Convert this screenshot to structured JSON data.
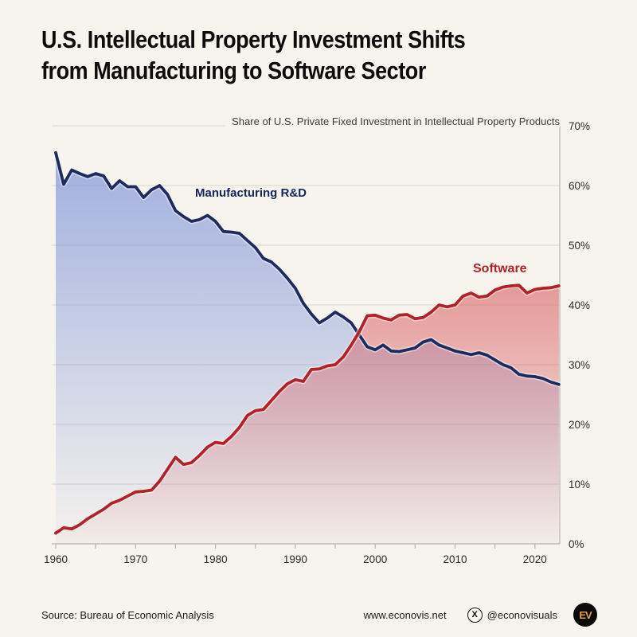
{
  "header": {
    "title_line1": "U.S. Intellectual Property Investment Shifts",
    "title_line2": "from Manufacturing to Software Sector"
  },
  "chart": {
    "subtitle": "Share of U.S. Private Fixed Investment in Intellectual Property Products",
    "manufacturing_label": "Manufacturing R&D",
    "software_label": "Software"
  },
  "chart_data": {
    "type": "area",
    "title": "U.S. Intellectual Property Investment Shifts from Manufacturing to Software Sector",
    "subtitle": "Share of U.S. Private Fixed Investment in Intellectual Property Products",
    "xlabel": "",
    "ylabel": "",
    "ylim": [
      0,
      70
    ],
    "grid": true,
    "legend": "inline-labels",
    "ytick_values": [
      0,
      10,
      20,
      30,
      40,
      50,
      60,
      70
    ],
    "ytick_labels": [
      "0%",
      "10%",
      "20%",
      "30%",
      "40%",
      "50%",
      "60%",
      "70%"
    ],
    "xtick_labels": [
      1960,
      1970,
      1980,
      1990,
      2000,
      2010,
      2020
    ],
    "minor_xtick_step_years": 5,
    "x": [
      1960,
      1961,
      1962,
      1963,
      1964,
      1965,
      1966,
      1967,
      1968,
      1969,
      1970,
      1971,
      1972,
      1973,
      1974,
      1975,
      1976,
      1977,
      1978,
      1979,
      1980,
      1981,
      1982,
      1983,
      1984,
      1985,
      1986,
      1987,
      1988,
      1989,
      1990,
      1991,
      1992,
      1993,
      1994,
      1995,
      1996,
      1997,
      1998,
      1999,
      2000,
      2001,
      2002,
      2003,
      2004,
      2005,
      2006,
      2007,
      2008,
      2009,
      2010,
      2011,
      2012,
      2013,
      2014,
      2015,
      2016,
      2017,
      2018,
      2019,
      2020,
      2021,
      2022,
      2023
    ],
    "series": [
      {
        "name": "Manufacturing R&D",
        "line_color": "#1d2b61",
        "fill_color": "#6c85d6",
        "values": [
          65.5,
          60.2,
          62.6,
          62.0,
          61.5,
          62.0,
          61.6,
          59.5,
          60.8,
          59.8,
          59.8,
          58.0,
          59.3,
          60.0,
          58.5,
          55.8,
          54.8,
          54.0,
          54.3,
          55.0,
          54.0,
          52.3,
          52.2,
          52.0,
          50.8,
          49.6,
          47.8,
          47.2,
          46.0,
          44.5,
          42.8,
          40.3,
          38.5,
          37.0,
          37.8,
          38.8,
          38.0,
          37.0,
          35.0,
          33.0,
          32.5,
          33.3,
          32.3,
          32.2,
          32.5,
          32.8,
          33.8,
          34.2,
          33.3,
          32.8,
          32.3,
          32.0,
          31.7,
          32.0,
          31.6,
          30.8,
          30.0,
          29.5,
          28.4,
          28.1,
          28.0,
          27.7,
          27.1,
          26.7
        ]
      },
      {
        "name": "Software",
        "line_color": "#b1222a",
        "fill_color": "#d65055",
        "values": [
          1.8,
          2.7,
          2.5,
          3.2,
          4.2,
          5.0,
          5.8,
          6.8,
          7.3,
          8.0,
          8.7,
          8.8,
          9.0,
          10.5,
          12.5,
          14.5,
          13.3,
          13.6,
          14.8,
          16.2,
          17.0,
          16.8,
          18.0,
          19.5,
          21.5,
          22.3,
          22.5,
          24.0,
          25.5,
          26.8,
          27.5,
          27.2,
          29.2,
          29.3,
          29.8,
          30.0,
          31.3,
          33.3,
          35.5,
          38.2,
          38.3,
          37.8,
          37.5,
          38.3,
          38.4,
          37.7,
          37.9,
          38.8,
          40.0,
          39.7,
          40.0,
          41.5,
          42.0,
          41.3,
          41.5,
          42.5,
          43.0,
          43.2,
          43.3,
          42.0,
          42.6,
          42.8,
          42.9,
          43.2
        ]
      }
    ]
  },
  "footer": {
    "source": "Source: Bureau of Economic Analysis",
    "website": "www.econovis.net",
    "x_glyph": "X",
    "social_handle": "@econovisuals",
    "logo_text": "EV"
  },
  "colors": {
    "background": "#f7f4ee",
    "gridline": "#e0dcd4",
    "axis": "#b9b4ab",
    "tick_text": "#2b2b2b"
  }
}
